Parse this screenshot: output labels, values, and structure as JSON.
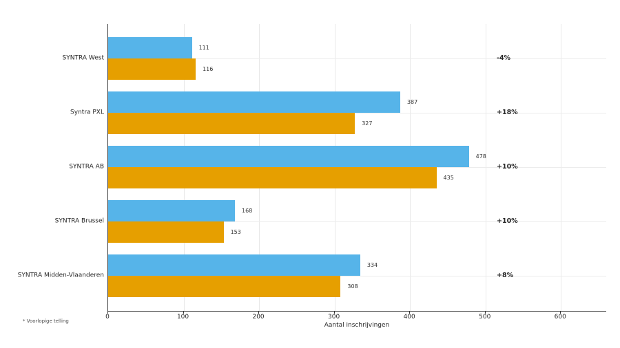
{
  "chart_data": {
    "type": "bar",
    "orientation": "horizontal",
    "title": "",
    "categories": [
      "SYNTRA West",
      "Syntra PXL",
      "SYNTRA AB",
      "SYNTRA Brussel",
      "SYNTRA Midden-Vlaanderen"
    ],
    "series": [
      {
        "name": "blue-series",
        "color": "#56B4E9",
        "values": [
          111,
          387,
          478,
          168,
          334
        ]
      },
      {
        "name": "orange-series",
        "color": "#E69F00",
        "values": [
          116,
          327,
          435,
          153,
          308
        ]
      }
    ],
    "delta_labels": [
      "-4%",
      "+18%",
      "+10%",
      "+10%",
      "+8%"
    ],
    "xlabel": "Aantal inschrijvingen",
    "x_ticks": [
      0,
      100,
      200,
      300,
      400,
      500,
      600
    ],
    "xlim": [
      0,
      660
    ],
    "grid": true,
    "legend": "none",
    "footnote": "* Voorlopige telling"
  }
}
